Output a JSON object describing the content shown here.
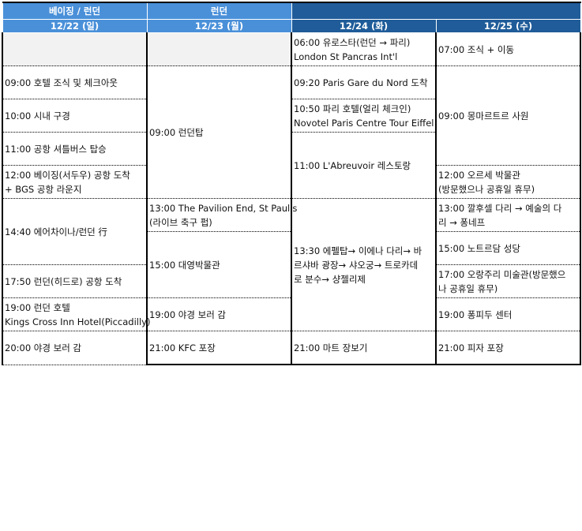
{
  "header": {
    "groups": [
      {
        "label": "베이징 / 런던",
        "color": "#4a90d9"
      },
      {
        "label": "런던",
        "color": "#4a90d9"
      },
      {
        "label": "",
        "color": "#1f5c99"
      }
    ],
    "days": [
      {
        "label": "12/22 (일)",
        "color": "#4a90d9"
      },
      {
        "label": "12/23 (월)",
        "color": "#4a90d9"
      },
      {
        "label": "12/24 (화)",
        "color": "#1f5c99"
      },
      {
        "label": "12/25 (수)",
        "color": "#1f5c99"
      }
    ]
  },
  "columns": [
    {
      "cells": [
        {
          "lines": [],
          "span": 2
        },
        {
          "lines": [
            "09:00 호텔 조식 및 체크아웃"
          ],
          "span": 1
        },
        {
          "lines": [
            "10:00 시내 구경"
          ],
          "span": 1
        },
        {
          "lines": [
            "11:00 공항 셔틀버스 탑승"
          ],
          "span": 1
        },
        {
          "lines": [
            "12:00 베이징(서두우) 공항 도착",
            "+ BGS 공항 라운지"
          ],
          "span": 2
        },
        {
          "lines": [
            "14:40 에어차이나/런던 行"
          ],
          "span": 3
        },
        {
          "lines": [
            "17:50 런던(히드로) 공항 도착"
          ],
          "span": 2
        },
        {
          "lines": [
            "19:00 런던 호텔",
            "Kings Cross Inn Hotel(Piccadilly)"
          ],
          "span": 1
        },
        {
          "lines": [
            "20:00 야경 보러 감"
          ],
          "span": 2
        }
      ]
    },
    {
      "cells": [
        {
          "lines": [],
          "span": 2
        },
        {
          "lines": [
            "09:00 런던탑"
          ],
          "span": 4
        },
        {
          "lines": [
            "13:00 The Pavilion End, St Paul's",
            "(라이브 축구 펍)"
          ],
          "span": 2
        },
        {
          "lines": [
            "15:00 대영박물관"
          ],
          "span": 4
        },
        {
          "lines": [
            "19:00 야경 보러 감"
          ],
          "span": 2
        },
        {
          "lines": [
            "21:00 KFC 포장"
          ],
          "span": 1
        }
      ]
    },
    {
      "cells": [
        {
          "lines": [
            "06:00 유로스타(런던 → 파리)",
            "London St Pancras Int'l"
          ],
          "span": 2
        },
        {
          "lines": [
            "09:20 Paris Gare du Nord 도착"
          ],
          "span": 1
        },
        {
          "lines": [
            "10:50 파리 호텔(얼리 체크인)",
            "Novotel Paris Centre Tour Eiffel"
          ],
          "span": 1
        },
        {
          "lines": [
            "11:00 L'Abreuvoir 레스토랑"
          ],
          "span": 2
        },
        {
          "lines": [
            "13:30 에펠탑→ 이에나 다리→ 바",
            "르샤바 광장→ 샤오궁→ 트로카데",
            "로 분수→ 샹젤리제"
          ],
          "span": 8
        },
        {
          "lines": [
            "21:00 마트 장보기"
          ],
          "span": 1
        }
      ]
    },
    {
      "cells": [
        {
          "lines": [
            "07:00 조식 + 이동"
          ],
          "span": 2
        },
        {
          "lines": [
            "09:00 몽마르트르 사원"
          ],
          "span": 3
        },
        {
          "lines": [
            "12:00 오르세 박물관",
            "(방문했으나 공휴일 휴무)"
          ],
          "span": 1
        },
        {
          "lines": [
            "13:00 깔후셀 다리 → 예술의 다",
            "리 → 퐁네프"
          ],
          "span": 2
        },
        {
          "lines": [
            "15:00 노트르담 성당"
          ],
          "span": 2
        },
        {
          "lines": [
            "17:00 오랑주리 미술관(방문했으",
            "나 공휴일 휴무)"
          ],
          "span": 2
        },
        {
          "lines": [
            "19:00 퐁피두 센터"
          ],
          "span": 2
        },
        {
          "lines": [
            "21:00 피자 포장"
          ],
          "span": 1
        }
      ]
    }
  ]
}
